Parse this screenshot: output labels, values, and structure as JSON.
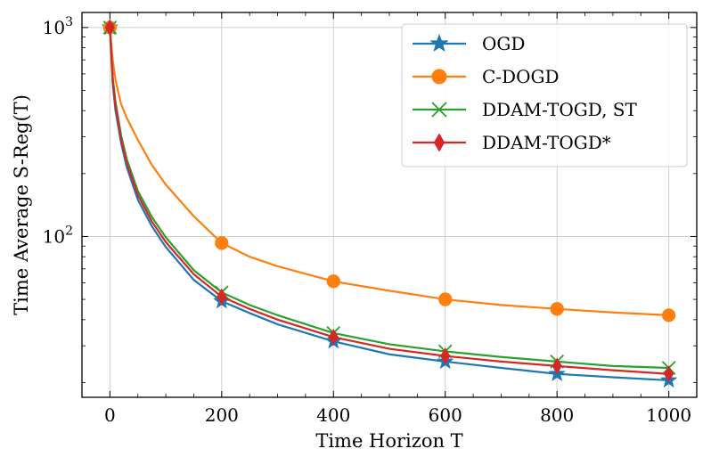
{
  "chart_data": {
    "type": "line",
    "title": "",
    "xlabel": "Time Horizon T",
    "ylabel": "Time Average S-Reg(T)",
    "xlim": [
      -50,
      1050
    ],
    "ylim": [
      17,
      1180
    ],
    "yscale": "log",
    "grid": true,
    "legend_position": "top-right",
    "x_ticks": [
      0,
      200,
      400,
      600,
      800,
      1000
    ],
    "x_tick_labels": [
      "0",
      "200",
      "400",
      "600",
      "800",
      "1000"
    ],
    "y_ticks": [
      100,
      1000
    ],
    "y_tick_labels": [
      "10^2",
      "10^3"
    ],
    "x": [
      0,
      5,
      10,
      20,
      30,
      50,
      75,
      100,
      150,
      200,
      250,
      300,
      400,
      500,
      600,
      700,
      800,
      900,
      1000
    ],
    "marker_x": [
      0,
      200,
      400,
      600,
      800,
      1000
    ],
    "series": [
      {
        "name": "OGD",
        "color": "#1f77b4",
        "marker": "star",
        "values": [
          1000,
          540,
          400,
          280,
          215,
          150,
          112,
          89,
          62,
          49,
          43,
          38,
          31.5,
          27.3,
          25.2,
          23.5,
          22.0,
          21.2,
          20.5
        ]
      },
      {
        "name": "C-DOGD",
        "color": "#ff7f0e",
        "marker": "circle",
        "values": [
          1000,
          700,
          560,
          430,
          370,
          290,
          220,
          177,
          125,
          93,
          80,
          72,
          61,
          55,
          50,
          47,
          45,
          43.3,
          42
        ]
      },
      {
        "name": "DDAM-TOGD, ST",
        "color": "#2ca02c",
        "marker": "x",
        "values": [
          1000,
          580,
          440,
          305,
          235,
          165,
          124,
          99,
          69,
          54,
          47,
          42,
          34.5,
          30.5,
          28.2,
          26.5,
          25.2,
          24.0,
          23.5
        ]
      },
      {
        "name": "DDAM-TOGD*",
        "color": "#d62728",
        "marker": "diamond",
        "values": [
          1000,
          560,
          420,
          292,
          225,
          158,
          118,
          94,
          66,
          51.5,
          45,
          40,
          33,
          29,
          26.8,
          25.2,
          24.0,
          22.9,
          22.0
        ]
      }
    ]
  }
}
